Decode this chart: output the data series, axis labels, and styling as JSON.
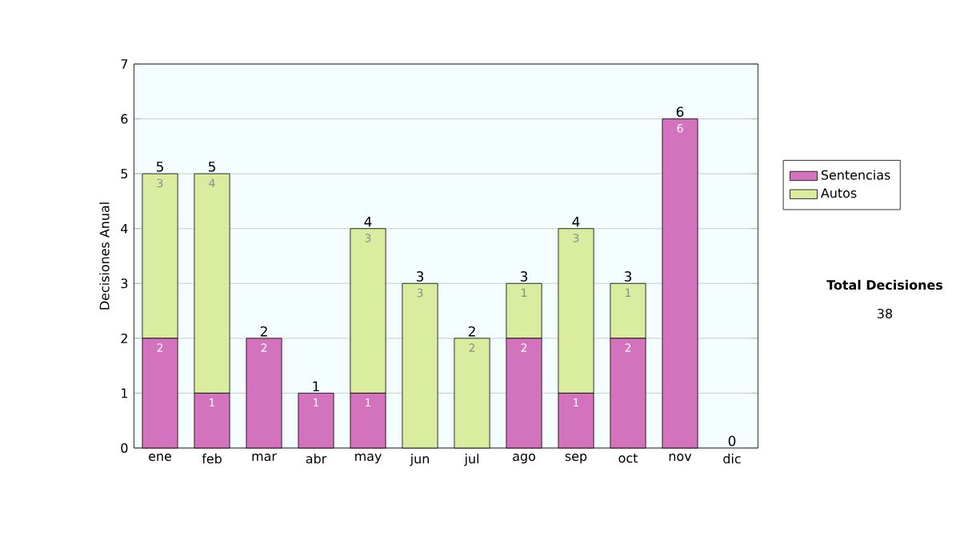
{
  "chart_data": {
    "type": "bar",
    "stacked": true,
    "ylabel": "Decisiones Anual",
    "categories": [
      "ene",
      "feb",
      "mar",
      "abr",
      "may",
      "jun",
      "jul",
      "ago",
      "sep",
      "oct",
      "nov",
      "dic"
    ],
    "series": [
      {
        "name": "Sentencias",
        "color": "#d473bd",
        "values": [
          2,
          1,
          2,
          1,
          1,
          0,
          0,
          2,
          1,
          2,
          6,
          0
        ],
        "value_labels": [
          "2",
          "1",
          "2",
          "1",
          "1",
          null,
          null,
          "2",
          "1",
          "2",
          "6",
          null
        ]
      },
      {
        "name": "Autos",
        "color": "#d9eca0",
        "values": [
          3,
          4,
          0,
          0,
          3,
          3,
          2,
          1,
          3,
          1,
          0,
          0
        ],
        "value_labels": [
          "3",
          "4",
          null,
          null,
          "3",
          "3",
          "2",
          "1",
          "3",
          "1",
          null,
          null
        ]
      }
    ],
    "totals": [
      "5",
      "5",
      "2",
      "1",
      "4",
      "3",
      "2",
      "3",
      "4",
      "3",
      "6",
      "0"
    ],
    "ylim": [
      0,
      7
    ],
    "yticks": [
      0,
      1,
      2,
      3,
      4,
      5,
      6,
      7
    ],
    "grid": "y",
    "legend": "right",
    "annotations": [
      "Total Decisiones",
      "38"
    ]
  }
}
